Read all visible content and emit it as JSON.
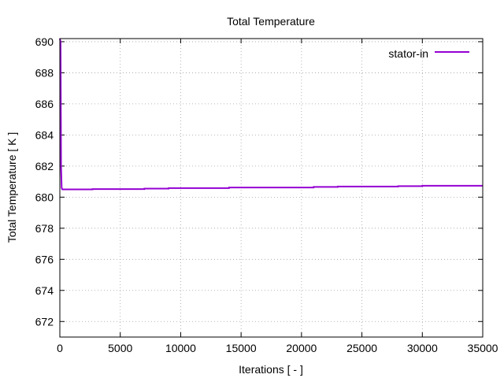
{
  "chart_data": {
    "type": "line",
    "title": "Total Temperature",
    "xlabel": "Iterations [ - ]",
    "ylabel": "Total Temperature [ K ]",
    "xlim": [
      0,
      35000
    ],
    "ylim": [
      671,
      690.2
    ],
    "xticks": [
      0,
      5000,
      10000,
      15000,
      20000,
      25000,
      30000,
      35000
    ],
    "yticks": [
      672,
      674,
      676,
      678,
      680,
      682,
      684,
      686,
      688,
      690
    ],
    "grid": true,
    "legend_position": "top-right",
    "series": [
      {
        "name": "stator-in",
        "color": "#9400d3",
        "x": [
          0,
          60,
          100,
          150,
          200,
          300,
          500,
          1000,
          2700,
          2701,
          7000,
          7001,
          9000,
          9001,
          14000,
          14001,
          21000,
          21001,
          23000,
          23001,
          28000,
          28001,
          30000,
          30001,
          35000
        ],
        "y": [
          690.2,
          690.0,
          682.0,
          680.6,
          680.5,
          680.5,
          680.5,
          680.5,
          680.5,
          680.52,
          680.52,
          680.55,
          680.55,
          680.58,
          680.58,
          680.62,
          680.62,
          680.66,
          680.66,
          680.68,
          680.68,
          680.71,
          680.71,
          680.73,
          680.73
        ]
      }
    ]
  }
}
